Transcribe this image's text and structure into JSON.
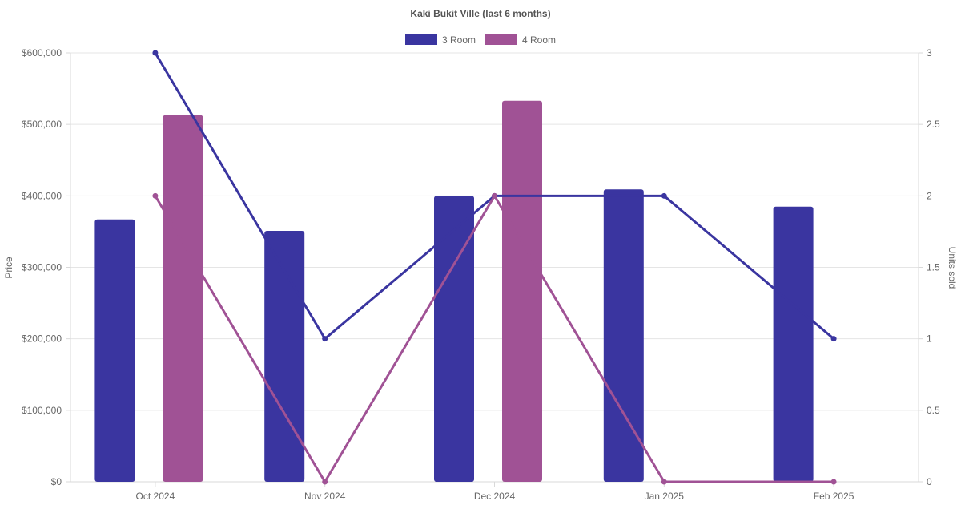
{
  "chart_data": {
    "type": "bar",
    "title": "Kaki Bukit Ville (last 6 months)",
    "categories": [
      "Oct 2024",
      "Nov 2024",
      "Dec 2024",
      "Jan 2025",
      "Feb 2025"
    ],
    "y_left": {
      "label": "Price",
      "ticks": [
        "$0",
        "$100,000",
        "$200,000",
        "$300,000",
        "$400,000",
        "$500,000",
        "$600,000"
      ],
      "range": [
        0,
        600000
      ]
    },
    "y_right": {
      "label": "Units sold",
      "ticks": [
        "0",
        "0.5",
        "1",
        "1.5",
        "2",
        "2.5",
        "3"
      ],
      "range": [
        0,
        3
      ]
    },
    "legend": {
      "position": "top-center"
    },
    "series": [
      {
        "name": "3 Room",
        "type": "bar",
        "axis": "left",
        "color": "#3a35a0",
        "values": [
          367000,
          351000,
          400000,
          409000,
          385000
        ]
      },
      {
        "name": "4 Room",
        "type": "bar",
        "axis": "left",
        "color": "#a05295",
        "values": [
          513000,
          null,
          533000,
          null,
          null
        ]
      },
      {
        "name": "3 Room",
        "type": "line",
        "axis": "right",
        "color": "#3a35a0",
        "values": [
          3,
          1,
          2,
          2,
          1
        ]
      },
      {
        "name": "4 Room",
        "type": "line",
        "axis": "right",
        "color": "#a05295",
        "values": [
          2,
          0,
          2,
          0,
          0
        ]
      }
    ],
    "grid": true
  }
}
